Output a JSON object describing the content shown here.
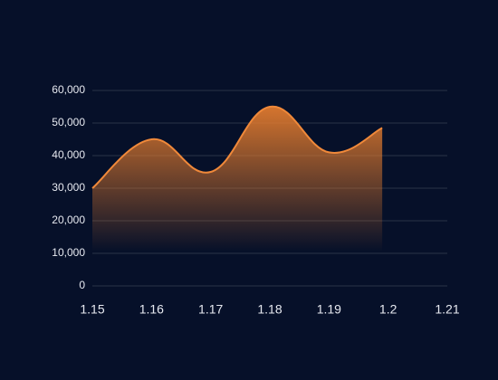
{
  "chart_data": {
    "type": "area",
    "x": [
      1.15,
      1.16,
      1.17,
      1.18,
      1.19,
      1.199
    ],
    "values": [
      30000,
      45000,
      35000,
      55000,
      41000,
      48500
    ],
    "color": "#f0893a",
    "xlim": [
      1.15,
      1.21
    ],
    "xticks": [
      1.15,
      1.16,
      1.17,
      1.18,
      1.19,
      1.2,
      1.21
    ],
    "ylim": [
      0,
      60000
    ],
    "yticks": [
      0,
      {
        "value": 10000,
        "label": "10,000"
      },
      {
        "value": 20000,
        "label": "20,000"
      },
      {
        "value": 30000,
        "label": "30,000"
      },
      {
        "value": 40000,
        "label": "40,000"
      },
      {
        "value": 50000,
        "label": "50,000"
      },
      {
        "value": 60000,
        "label": "60,000"
      }
    ],
    "grid": true
  }
}
